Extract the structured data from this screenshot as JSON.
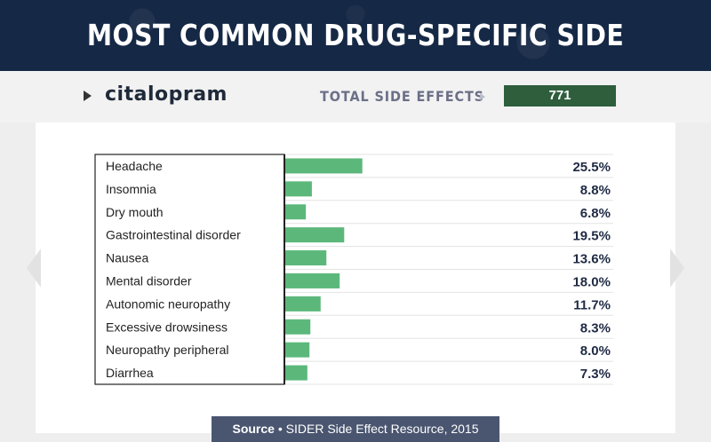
{
  "header": {
    "title": "MOST COMMON DRUG-SPECIFIC SIDE EFFECTS"
  },
  "drug": {
    "name": "citalopram",
    "total_label": "TOTAL SIDE EFFECTS",
    "total_value": "771"
  },
  "source": {
    "label": "Source",
    "separator": "•",
    "text": "SIDER Side Effect Resource, 2015"
  },
  "colors": {
    "bar": "#5cb87a",
    "header_bg": "#152845",
    "total_box": "#2e5e3c",
    "source_bg": "#4a5670",
    "value_text": "#1f2a44"
  },
  "chart_data": {
    "type": "bar",
    "orientation": "horizontal",
    "title": "",
    "xlabel": "",
    "ylabel": "",
    "categories": [
      "Headache",
      "Insomnia",
      "Dry mouth",
      "Gastrointestinal disorder",
      "Nausea",
      "Mental disorder",
      "Autonomic neuropathy",
      "Excessive drowsiness",
      "Neuropathy peripheral",
      "Diarrhea"
    ],
    "values": [
      25.5,
      8.8,
      6.8,
      19.5,
      13.6,
      18.0,
      11.7,
      8.3,
      8.0,
      7.3
    ],
    "value_labels": [
      "25.5%",
      "8.8%",
      "6.8%",
      "19.5%",
      "13.6%",
      "18.0%",
      "11.7%",
      "8.3%",
      "8.0%",
      "7.3%"
    ],
    "xlim": [
      0,
      100
    ],
    "grid": false,
    "legend": "none"
  }
}
